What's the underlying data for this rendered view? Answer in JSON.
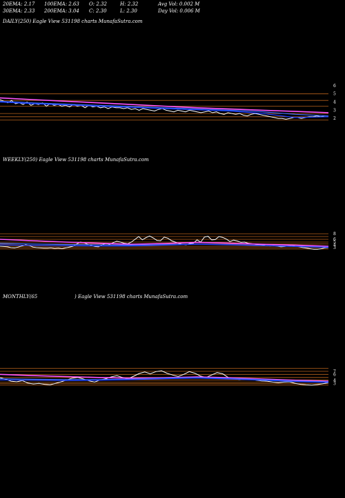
{
  "header": {
    "row1": [
      "20EMA: 2.17",
      "100EMA: 2.63",
      "O: 2.32",
      "H: 2.32",
      "Avg Vol: 0.002  M"
    ],
    "row2": [
      "30EMA: 2.33",
      "200EMA: 3.04",
      "C: 2.30",
      "L: 2.30",
      "Day Vol: 0.006  M"
    ]
  },
  "colors": {
    "background": "#000000",
    "price": "#ffffff",
    "ema_short": "#1a3cff",
    "ema_mid": "#3b6cff",
    "ema_long": "#ff55ff",
    "level_lines": "#b8621c",
    "ribbon": [
      "#c08040",
      "#a06030",
      "#5070ff",
      "#3050e0"
    ]
  },
  "chart_data": [
    {
      "type": "line",
      "label": "DAILY(250) Eagle  View  531198  charts MunafaSutra.com",
      "y_ticks": [
        "6",
        "5",
        "4",
        "3",
        "2"
      ],
      "y_tick_values": [
        6,
        5,
        4,
        3,
        2
      ],
      "ylim": [
        1,
        6.5
      ],
      "levels": [
        5,
        4.2,
        3.5,
        2.6,
        2.2,
        1.8
      ],
      "series": [
        {
          "role": "price",
          "values": [
            4.3,
            4.1,
            3.9,
            4.2,
            3.8,
            3.9,
            3.7,
            4.0,
            3.6,
            3.8,
            3.7,
            3.9,
            3.5,
            3.8,
            3.6,
            3.7,
            3.5,
            3.6,
            3.4,
            3.7,
            3.5,
            3.6,
            3.3,
            3.6,
            3.4,
            3.5,
            3.3,
            3.4,
            3.2,
            3.4,
            3.3,
            3.3,
            3.2,
            3.3,
            3.1,
            3.2,
            3.0,
            3.2,
            3.1,
            3.0,
            2.9,
            3.1,
            3.2,
            3.0,
            2.9,
            2.8,
            3.0,
            2.9,
            2.8,
            3.0,
            2.9,
            2.8,
            2.7,
            2.8,
            2.9,
            2.7,
            2.8,
            2.6,
            2.5,
            2.7,
            2.6,
            2.5,
            2.6,
            2.4,
            2.3,
            2.5,
            2.6,
            2.5,
            2.4,
            2.3,
            2.2,
            2.1,
            2.0,
            2.0,
            1.9,
            2.0,
            2.1,
            2.1,
            2.0,
            2.1,
            2.2,
            2.2,
            2.3,
            2.2,
            2.3,
            2.3
          ]
        },
        {
          "role": "ema_long",
          "values": [
            4.5,
            4.3,
            4.1,
            3.9,
            3.7,
            3.5,
            3.3,
            3.15,
            3.0,
            2.85,
            2.7
          ]
        },
        {
          "role": "ema_mid",
          "values": [
            4.1,
            3.9,
            3.75,
            3.6,
            3.45,
            3.3,
            3.15,
            3.0,
            2.8,
            2.5,
            2.3
          ]
        },
        {
          "role": "ema_short",
          "values": [
            4.0,
            3.8,
            3.65,
            3.5,
            3.35,
            3.2,
            3.05,
            2.9,
            2.6,
            2.1,
            2.2
          ]
        }
      ]
    },
    {
      "type": "line",
      "label": "WEEKLY(250) Eagle  View  531198  charts MunafaSutra.com",
      "y_ticks": [
        "8",
        "6",
        "5",
        "4",
        "3"
      ],
      "y_tick_values": [
        8,
        6,
        5,
        4,
        3
      ],
      "ylim": [
        0,
        10
      ],
      "levels": [
        8,
        7,
        6,
        5,
        4.3,
        3.5,
        3,
        2.5
      ],
      "series": [
        {
          "role": "price",
          "values": [
            3.5,
            3.4,
            3.3,
            3.0,
            2.9,
            3.2,
            3.6,
            4.0,
            3.8,
            3.2,
            3.0,
            2.9,
            2.8,
            2.8,
            2.9,
            2.7,
            2.8,
            2.6,
            2.9,
            3.2,
            3.5,
            4.3,
            5.0,
            4.8,
            4.2,
            3.8,
            3.4,
            3.3,
            4.0,
            4.6,
            4.2,
            4.8,
            5.3,
            5.0,
            4.6,
            4.4,
            5.0,
            6.0,
            7.0,
            5.8,
            6.6,
            7.2,
            6.5,
            5.6,
            5.5,
            6.8,
            6.4,
            5.5,
            5.0,
            4.5,
            4.2,
            4.0,
            4.5,
            4.6,
            5.8,
            5.0,
            6.8,
            7.1,
            5.8,
            5.9,
            7.0,
            6.7,
            6.1,
            5.2,
            5.7,
            5.4,
            4.9,
            5.0,
            4.6,
            4.4,
            4.2,
            4.1,
            4.0,
            3.7,
            3.6,
            3.7,
            3.5,
            3.3,
            3.4,
            3.6,
            3.8,
            3.5,
            3.3,
            3.0,
            2.8,
            2.6,
            2.4,
            2.4,
            2.6,
            2.9,
            3.0
          ]
        },
        {
          "role": "ema_long",
          "values": [
            6.0,
            5.5,
            5.0,
            4.6,
            4.2,
            4.5,
            4.9,
            4.6,
            4.2,
            3.9,
            3.5
          ]
        },
        {
          "role": "ema_mid",
          "values": [
            4.6,
            4.3,
            4.1,
            4.0,
            3.9,
            4.1,
            4.3,
            4.1,
            3.8,
            3.5,
            3.2
          ]
        },
        {
          "role": "ema_short",
          "values": [
            4.0,
            3.8,
            3.7,
            3.6,
            3.6,
            3.9,
            4.2,
            4.0,
            3.7,
            3.4,
            3.1
          ]
        }
      ]
    },
    {
      "type": "line",
      "label_left": "MONTHLY(65",
      "label_right": ") Eagle  View  531198  charts MunafaSutra.com",
      "y_ticks": [
        "7",
        "6",
        "4",
        "3"
      ],
      "y_tick_values": [
        7,
        6,
        4,
        3
      ],
      "ylim": [
        0,
        9
      ],
      "levels": [
        8,
        7,
        6,
        5,
        4.2,
        3.5,
        3,
        2.5
      ],
      "series": [
        {
          "role": "price",
          "values": [
            5.0,
            4.4,
            3.8,
            3.6,
            4.0,
            3.2,
            2.9,
            3.1,
            2.8,
            2.6,
            3.1,
            3.6,
            4.2,
            4.8,
            5.0,
            4.5,
            3.9,
            3.5,
            4.2,
            4.6,
            5.2,
            5.6,
            5.0,
            4.6,
            5.4,
            6.3,
            6.8,
            6.2,
            6.9,
            7.2,
            6.4,
            5.8,
            5.3,
            6.0,
            6.9,
            6.4,
            5.5,
            5.0,
            5.8,
            6.6,
            6.2,
            5.0,
            4.6,
            4.3,
            4.6,
            4.4,
            4.1,
            3.9,
            3.8,
            3.5,
            3.3,
            3.5,
            3.6,
            3.1,
            2.8,
            2.6,
            2.5,
            2.7,
            3.0,
            3.3
          ]
        },
        {
          "role": "ema_long",
          "values": [
            6.0,
            5.6,
            5.3,
            5.0,
            4.8,
            4.9,
            5.2,
            4.9,
            4.5,
            4.1,
            3.8
          ]
        },
        {
          "role": "ema_mid",
          "values": [
            4.6,
            4.4,
            4.3,
            4.3,
            4.5,
            4.8,
            5.0,
            4.7,
            4.3,
            3.9,
            3.6
          ]
        },
        {
          "role": "ema_short",
          "values": [
            4.2,
            4.1,
            4.0,
            4.1,
            4.3,
            4.6,
            4.8,
            4.5,
            4.1,
            3.7,
            3.4
          ]
        }
      ]
    }
  ]
}
